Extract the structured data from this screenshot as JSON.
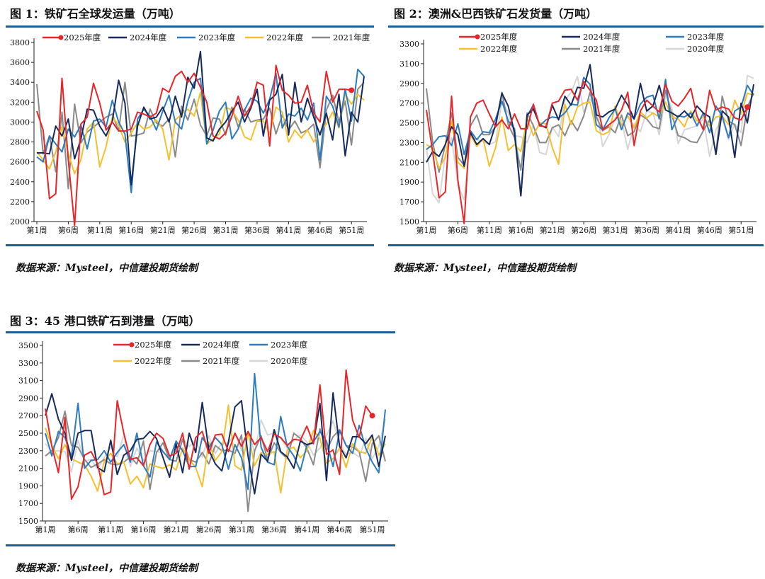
{
  "figures": [
    {
      "title": "图 1：铁矿石全球发运量（万吨）",
      "source": "数据来源：Mysteel，中信建投期货绘制"
    },
    {
      "title": "图 2：澳洲&巴西铁矿石发货量（万吨）",
      "source": "数据来源：Mysteel，中信建投期货绘制"
    },
    {
      "title": "图 3：45 港口铁矿石到港量（万吨）",
      "source": "数据来源：Mysteel，中信建投期货绘制"
    }
  ],
  "colors": {
    "2025年度": "#e8262a",
    "2024年度": "#172a5c",
    "2023年度": "#2e7bc0",
    "2022年度": "#f5c02e",
    "2021年度": "#8a8a8a",
    "2020年度": "#d6d6d6",
    "rule": "#1f5f99"
  },
  "chart_data": [
    {
      "type": "line",
      "ylim": [
        2000,
        3800
      ],
      "yticks": [
        2000,
        2200,
        2400,
        2600,
        2800,
        3000,
        3200,
        3400,
        3600,
        3800
      ],
      "xtick_labels": [
        "第1周",
        "第6周",
        "第11周",
        "第16周",
        "第21周",
        "第26周",
        "第31周",
        "第36周",
        "第41周",
        "第46周",
        "第51周"
      ],
      "legend": [
        "2025年度",
        "2024年度",
        "2023年度",
        "2022年度",
        "2021年度"
      ],
      "series": [
        {
          "name": "2025年度",
          "values": [
            3110,
            2920,
            2230,
            2280,
            3440,
            2620,
            1960,
            2980,
            3050,
            3390,
            3190,
            2920,
            3000,
            2910,
            2910,
            2930,
            3100,
            3080,
            3050,
            3090,
            3340,
            3300,
            3460,
            3510,
            3400,
            3490,
            3350,
            3200,
            2860,
            2830,
            2890,
            3060,
            3260,
            3060,
            3160,
            3400,
            3370,
            2760,
            3570,
            3320,
            3270,
            3190,
            3200,
            3370,
            3090,
            3000,
            3510,
            3200,
            3330,
            3330,
            3320
          ],
          "last_marker": true
        },
        {
          "name": "2024年度",
          "values": [
            2690,
            2690,
            2680,
            2960,
            2860,
            3030,
            2630,
            2830,
            3130,
            3120,
            2960,
            2860,
            3010,
            3420,
            3190,
            2370,
            2960,
            3150,
            3030,
            3050,
            3150,
            3000,
            3260,
            3050,
            3450,
            3340,
            3710,
            2840,
            2810,
            2930,
            3000,
            3110,
            3200,
            3000,
            3140,
            3330,
            2860,
            3220,
            3280,
            3480,
            2870,
            3400,
            3000,
            3240,
            3050,
            2870,
            3090,
            2820,
            3280,
            2660,
            3100,
            3000,
            3460
          ]
        },
        {
          "name": "2023年度",
          "values": [
            2650,
            2600,
            2860,
            2780,
            2700,
            2930,
            2850,
            2970,
            2730,
            3010,
            3030,
            2950,
            3220,
            3000,
            2880,
            2290,
            3030,
            3130,
            3060,
            2920,
            3110,
            3270,
            3000,
            2930,
            3210,
            3400,
            3440,
            2780,
            2920,
            3110,
            3200,
            2830,
            2930,
            3120,
            3240,
            3210,
            3090,
            3230,
            3490,
            2940,
            3080,
            3060,
            3140,
            3020,
            3190,
            2620,
            3260,
            3160,
            2950,
            3330,
            3010,
            3530,
            3460
          ]
        },
        {
          "name": "2022年度",
          "values": [
            2700,
            2620,
            2530,
            2700,
            2950,
            2690,
            2480,
            2620,
            2930,
            3000,
            2550,
            2750,
            3050,
            2970,
            2800,
            2890,
            2990,
            2930,
            2950,
            3020,
            2930,
            2620,
            3020,
            3080,
            3130,
            3060,
            3300,
            2780,
            2830,
            2880,
            3150,
            3120,
            3020,
            2850,
            2820,
            3010,
            3010,
            2880,
            3150,
            3100,
            2800,
            2920,
            2840,
            2920,
            2800,
            2900,
            2980,
            3100,
            2940,
            3280,
            3180,
            3280,
            3220
          ]
        },
        {
          "name": "2021年度",
          "values": [
            3380,
            2680,
            2860,
            2500,
            3100,
            2330,
            3180,
            2790,
            2900,
            2950,
            3000,
            3050,
            3080,
            2910,
            3400,
            2860,
            2870,
            2890,
            3130,
            2990,
            2960,
            3030,
            2650,
            3160,
            3020,
            3230,
            2970,
            2860,
            3040,
            3030,
            2870,
            3150,
            2950,
            3130,
            3000,
            3020,
            3030,
            3140,
            2880,
            3070,
            2920,
            3010,
            2890,
            2920,
            2980,
            2540,
            3120,
            3270,
            3000,
            3210,
            2770,
            3330,
            3400
          ]
        }
      ]
    },
    {
      "type": "line",
      "ylim": [
        1500,
        3300
      ],
      "yticks": [
        1500,
        1700,
        1900,
        2100,
        2300,
        2500,
        2700,
        2900,
        3100,
        3300
      ],
      "xtick_labels": [
        "第1周",
        "第6周",
        "第11周",
        "第16周",
        "第21周",
        "第26周",
        "第31周",
        "第36周",
        "第41周",
        "第46周",
        "第51周"
      ],
      "legend": [
        "2025年度",
        "2024年度",
        "2023年度",
        "2022年度",
        "2021年度",
        "2020年度"
      ],
      "series": [
        {
          "name": "2025年度",
          "values": [
            2630,
            2200,
            1740,
            1800,
            2770,
            1920,
            1480,
            2560,
            2700,
            2730,
            2590,
            2460,
            2530,
            2440,
            2590,
            2440,
            2440,
            2690,
            2470,
            2460,
            2700,
            2720,
            2830,
            2840,
            2730,
            2920,
            2830,
            2730,
            2430,
            2480,
            2530,
            2630,
            2810,
            2270,
            2620,
            2730,
            2670,
            2610,
            2890,
            2720,
            2670,
            2750,
            2850,
            2570,
            2430,
            2830,
            2630,
            2660,
            2640,
            2550,
            2530,
            2660
          ],
          "last_marker": true
        },
        {
          "name": "2024年度",
          "values": [
            2100,
            2210,
            2160,
            2280,
            2460,
            2380,
            2060,
            2400,
            2280,
            2340,
            2280,
            2480,
            2800,
            2670,
            2400,
            1760,
            2580,
            2640,
            2480,
            2450,
            2680,
            2530,
            2770,
            2680,
            2860,
            2850,
            3090,
            2580,
            2560,
            2610,
            2640,
            2780,
            2680,
            2540,
            2900,
            2620,
            2670,
            2880,
            2630,
            2600,
            2560,
            2620,
            2550,
            2670,
            2600,
            2560,
            2180,
            2620,
            2560,
            2150,
            2700,
            2500,
            2890
          ]
        },
        {
          "name": "2023年度",
          "values": [
            2230,
            2280,
            2360,
            2370,
            2270,
            2490,
            2180,
            2420,
            2330,
            2410,
            2400,
            2540,
            2720,
            2520,
            2440,
            1760,
            2570,
            2680,
            2470,
            2530,
            2560,
            2550,
            2600,
            2690,
            2680,
            2960,
            2890,
            2480,
            2430,
            2550,
            2640,
            2430,
            2600,
            2540,
            2690,
            2760,
            2780,
            2540,
            2940,
            2430,
            2570,
            2560,
            2600,
            2470,
            2600,
            2400,
            2670,
            2570,
            2350,
            2620,
            2660,
            2880,
            2780
          ]
        },
        {
          "name": "2022年度",
          "values": [
            2280,
            2240,
            2040,
            2150,
            2520,
            2100,
            2040,
            2380,
            2260,
            2340,
            2060,
            2250,
            2560,
            2220,
            2280,
            2210,
            2550,
            2370,
            2500,
            2490,
            2250,
            2080,
            2690,
            2480,
            2660,
            2700,
            2710,
            2420,
            2380,
            2410,
            2670,
            2470,
            2570,
            2450,
            2610,
            2550,
            2600,
            2560,
            2710,
            2560,
            2540,
            2460,
            2620,
            2520,
            2560,
            2470,
            2560,
            2570,
            2480,
            2730,
            2590,
            2800,
            2780
          ]
        },
        {
          "name": "2021年度",
          "values": [
            2850,
            2300,
            2000,
            2280,
            2600,
            2150,
            2070,
            2470,
            2580,
            2380,
            2380,
            2460,
            2810,
            2480,
            2350,
            2020,
            2600,
            2470,
            2300,
            2300,
            2450,
            2480,
            2370,
            2520,
            2420,
            2570,
            2810,
            2560,
            2420,
            2460,
            2400,
            2580,
            2370,
            2410,
            2580,
            2540,
            2460,
            2440,
            2830,
            2580,
            2370,
            2350,
            2310,
            2300,
            2420,
            2530,
            2190,
            2770,
            2520,
            2480,
            2270,
            2660,
            2800
          ]
        },
        {
          "name": "2020年度",
          "values": [
            2240,
            1780,
            1690,
            2180,
            2350,
            1870,
            1720,
            2360,
            2330,
            2310,
            2280,
            2310,
            2720,
            2600,
            2370,
            2360,
            2300,
            2480,
            2200,
            2180,
            2460,
            2360,
            2730,
            2810,
            2970,
            2610,
            2740,
            2660,
            2260,
            2380,
            2550,
            2530,
            2230,
            2490,
            2410,
            2620,
            2600,
            2380,
            2780,
            2650,
            2290,
            2430,
            2450,
            2470,
            2540,
            2160,
            2430,
            2550,
            2330,
            2490,
            2400,
            2980,
            2950
          ]
        }
      ]
    },
    {
      "type": "line",
      "ylim": [
        1500,
        3500
      ],
      "yticks": [
        1500,
        1700,
        1900,
        2100,
        2300,
        2500,
        2700,
        2900,
        3100,
        3300,
        3500
      ],
      "xtick_labels": [
        "第1周",
        "第6周",
        "第11周",
        "第16周",
        "第21周",
        "第26周",
        "第31周",
        "第36周",
        "第41周",
        "第46周",
        "第51周"
      ],
      "legend": [
        "2025年度",
        "2024年度",
        "2023年度",
        "2022年度",
        "2021年度",
        "2020年度"
      ],
      "series": [
        {
          "name": "2025年度",
          "values": [
            2780,
            2350,
            2050,
            2680,
            1750,
            1890,
            2250,
            2290,
            2150,
            1800,
            1830,
            2870,
            2500,
            2200,
            2220,
            2130,
            2370,
            2500,
            2440,
            2240,
            2270,
            2500,
            2090,
            2450,
            2520,
            2270,
            2480,
            2490,
            2290,
            2500,
            2350,
            2520,
            2370,
            2450,
            2290,
            2490,
            2450,
            2360,
            2430,
            2420,
            2580,
            2380,
            3050,
            2260,
            2310,
            2030,
            3220,
            2650,
            2450,
            2810,
            2700
          ],
          "last_marker": true
        },
        {
          "name": "2024年度",
          "values": [
            2700,
            2950,
            2660,
            2500,
            2190,
            2500,
            2530,
            2530,
            2110,
            2060,
            2420,
            2030,
            2250,
            2300,
            2430,
            2440,
            2520,
            2440,
            2220,
            2000,
            2380,
            2050,
            2500,
            2280,
            2850,
            2310,
            2150,
            2070,
            2400,
            2800,
            2870,
            2240,
            1810,
            2260,
            2180,
            2540,
            2290,
            2230,
            2100,
            2410,
            2370,
            2390,
            2840,
            1960,
            2960,
            2350,
            2220,
            2460,
            2460,
            2380,
            2480,
            2120,
            2470
          ]
        },
        {
          "name": "2023年度",
          "values": [
            2500,
            2240,
            2520,
            2450,
            2230,
            2840,
            2100,
            2190,
            2200,
            2300,
            2170,
            2280,
            2370,
            2170,
            2500,
            2130,
            2000,
            2400,
            2290,
            2200,
            2410,
            2300,
            2120,
            2120,
            2450,
            2340,
            2450,
            2370,
            2090,
            2370,
            2220,
            1860,
            3180,
            2340,
            2170,
            2140,
            2690,
            2350,
            2240,
            2070,
            2360,
            2400,
            2520,
            2410,
            2120,
            2530,
            2360,
            2270,
            2590,
            2330,
            2170,
            2050,
            2770
          ]
        },
        {
          "name": "2022年度",
          "values": [
            2560,
            2360,
            2210,
            2370,
            2210,
            2170,
            2140,
            2010,
            1840,
            2180,
            2270,
            2150,
            2170,
            1920,
            2010,
            1880,
            2150,
            2120,
            2100,
            2140,
            2080,
            2330,
            2200,
            2110,
            1890,
            2400,
            2190,
            2290,
            2820,
            2130,
            2080,
            2510,
            2130,
            2280,
            2260,
            2290,
            1820,
            2310,
            2340,
            2220,
            2300,
            2530,
            2440,
            2160,
            2210,
            2330,
            2110,
            2380,
            2290,
            2270,
            2460,
            2250,
            2380
          ]
        },
        {
          "name": "2021年度",
          "values": [
            2240,
            2300,
            2450,
            2750,
            2360,
            2340,
            2200,
            2110,
            2150,
            2200,
            2150,
            2140,
            2170,
            2230,
            2150,
            2410,
            1860,
            2280,
            2390,
            2200,
            2180,
            2430,
            2200,
            2170,
            2280,
            2150,
            2360,
            2300,
            2310,
            2270,
            2480,
            1610,
            2300,
            2470,
            2200,
            2390,
            2280,
            2210,
            2500,
            2440,
            2330,
            2140,
            2550,
            2300,
            2460,
            2540,
            2360,
            2340,
            2290,
            1950,
            2380,
            2470,
            2180
          ]
        },
        {
          "name": "2020年度",
          "values": [
            2380,
            2290,
            2300,
            2290,
            2060,
            2420,
            2180,
            2200,
            2090,
            2220,
            2340,
            2230,
            2480,
            2120,
            2330,
            2190,
            2300,
            2290,
            2280,
            2230,
            2300,
            2440,
            2350,
            2420,
            2230,
            2470,
            2270,
            2390,
            2380,
            2500,
            2300,
            2520,
            2280,
            2650,
            2480,
            2500,
            2440,
            2330,
            2420,
            2480,
            2400,
            2250,
            2330,
            2470,
            2640,
            2370,
            2260,
            2280,
            2230,
            2440,
            2210,
            2350,
            2660
          ]
        }
      ]
    }
  ]
}
